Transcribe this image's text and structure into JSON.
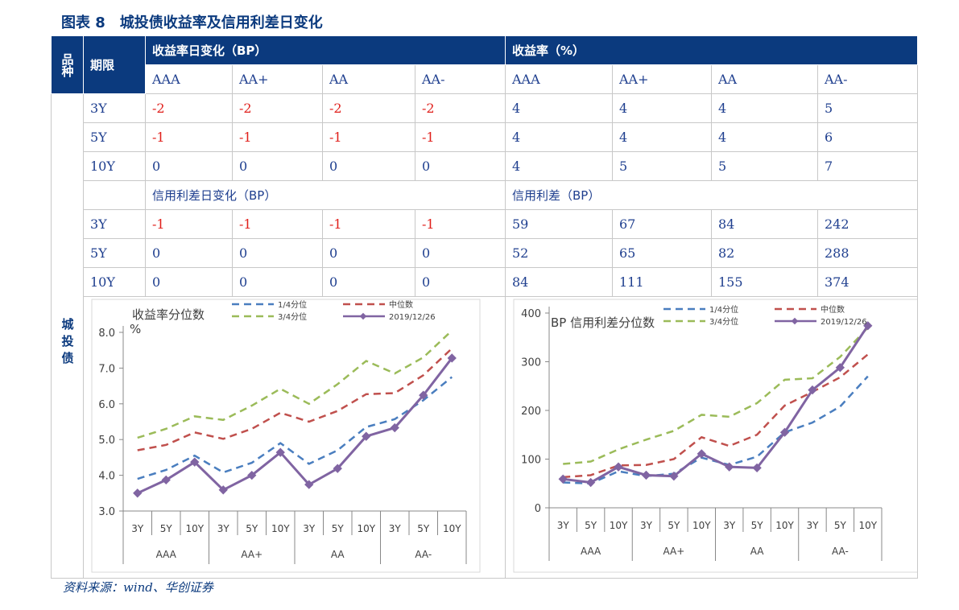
{
  "title": "图表 8　城投债收益率及信用利差日变化",
  "source": "资料来源：wind、华创证券",
  "table": {
    "col_variety": "品种",
    "col_term": "期限",
    "variety": "城投债",
    "yield_change_header": "收益率日变化（BP）",
    "yield_header": "收益率（%）",
    "ratings": [
      "AAA",
      "AA+",
      "AA",
      "AA-"
    ],
    "spread_change_header": "信用利差日变化（BP）",
    "spread_header": "信用利差（BP）",
    "yield_rows": [
      {
        "term": "3Y",
        "change": [
          "-2",
          "-2",
          "-2",
          "-2"
        ],
        "value": [
          "4",
          "4",
          "4",
          "5"
        ]
      },
      {
        "term": "5Y",
        "change": [
          "-1",
          "-1",
          "-1",
          "-1"
        ],
        "value": [
          "4",
          "4",
          "4",
          "6"
        ]
      },
      {
        "term": "10Y",
        "change": [
          "0",
          "0",
          "0",
          "0"
        ],
        "value": [
          "4",
          "5",
          "5",
          "7"
        ]
      }
    ],
    "spread_rows": [
      {
        "term": "3Y",
        "change": [
          "-1",
          "-1",
          "-1",
          "-1"
        ],
        "value": [
          "59",
          "67",
          "84",
          "242"
        ]
      },
      {
        "term": "5Y",
        "change": [
          "0",
          "0",
          "0",
          "0"
        ],
        "value": [
          "52",
          "65",
          "82",
          "288"
        ]
      },
      {
        "term": "10Y",
        "change": [
          "0",
          "0",
          "0",
          "0"
        ],
        "value": [
          "84",
          "111",
          "155",
          "374"
        ]
      }
    ]
  },
  "chart_data": [
    {
      "type": "line",
      "title": "收益率分位数",
      "ylabel": "%",
      "ylim": [
        3,
        8
      ],
      "yticks": [
        "3.0",
        "4.0",
        "5.0",
        "6.0",
        "7.0",
        "8.0"
      ],
      "categories": [
        "3Y",
        "5Y",
        "10Y",
        "3Y",
        "5Y",
        "10Y",
        "3Y",
        "5Y",
        "10Y",
        "3Y",
        "5Y",
        "10Y"
      ],
      "groups": [
        "AAA",
        "AA+",
        "AA",
        "AA-"
      ],
      "legend": "top",
      "series": [
        {
          "name": "1/4分位",
          "color": "#4a7ebf",
          "dashed": true,
          "values": [
            3.9,
            4.15,
            4.55,
            4.08,
            4.35,
            4.9,
            4.32,
            4.7,
            5.35,
            5.57,
            6.1,
            6.75
          ]
        },
        {
          "name": "中位数",
          "color": "#c0504d",
          "dashed": true,
          "values": [
            4.7,
            4.85,
            5.2,
            5.02,
            5.3,
            5.75,
            5.5,
            5.8,
            6.27,
            6.3,
            6.8,
            7.55
          ]
        },
        {
          "name": "3/4分位",
          "color": "#9bbb59",
          "dashed": true,
          "values": [
            5.05,
            5.3,
            5.65,
            5.55,
            5.95,
            6.42,
            6.0,
            6.55,
            7.2,
            6.85,
            7.3,
            8.05
          ]
        },
        {
          "name": "2019/12/26",
          "color": "#8064a2",
          "dashed": false,
          "values": [
            3.5,
            3.87,
            4.37,
            3.59,
            4.0,
            4.64,
            3.74,
            4.19,
            5.09,
            5.33,
            6.24,
            7.28
          ]
        }
      ]
    },
    {
      "type": "line",
      "title": "BP 信用利差分位数",
      "ylim": [
        0,
        400
      ],
      "yticks": [
        "0",
        "100",
        "200",
        "300",
        "400"
      ],
      "categories": [
        "3Y",
        "5Y",
        "10Y",
        "3Y",
        "5Y",
        "10Y",
        "3Y",
        "5Y",
        "10Y",
        "3Y",
        "5Y",
        "10Y"
      ],
      "groups": [
        "AAA",
        "AA+",
        "AA",
        "AA-"
      ],
      "legend": "top",
      "series": [
        {
          "name": "1/4分位",
          "color": "#4a7ebf",
          "dashed": true,
          "values": [
            52,
            50,
            75,
            65,
            70,
            103,
            88,
            105,
            155,
            175,
            208,
            270
          ]
        },
        {
          "name": "中位数",
          "color": "#c0504d",
          "dashed": true,
          "values": [
            63,
            67,
            87,
            88,
            100,
            145,
            127,
            150,
            210,
            238,
            268,
            315
          ]
        },
        {
          "name": "3/4分位",
          "color": "#9bbb59",
          "dashed": true,
          "values": [
            90,
            95,
            120,
            140,
            158,
            191,
            187,
            215,
            263,
            266,
            310,
            370
          ]
        },
        {
          "name": "2019/12/26",
          "color": "#8064a2",
          "dashed": false,
          "values": [
            59,
            52,
            84,
            67,
            65,
            111,
            84,
            82,
            155,
            242,
            288,
            374
          ]
        }
      ]
    }
  ]
}
